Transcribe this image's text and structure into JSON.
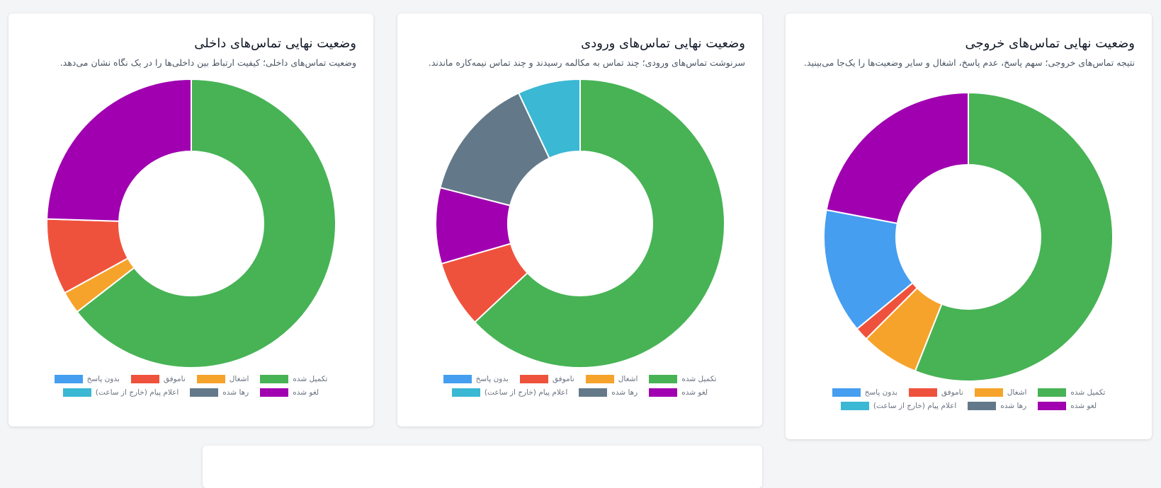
{
  "categories": [
    "تکمیل شده",
    "اشغال",
    "ناموفق",
    "بدون پاسخ",
    "لغو شده",
    "رها شده",
    "اعلام پیام (خارج از ساعت)"
  ],
  "colors": [
    "#47b355",
    "#f6a32b",
    "#ef523c",
    "#459ef0",
    "#a000b0",
    "#637989",
    "#3ab8d4"
  ],
  "cards": [
    {
      "id": "outgoing",
      "title": "وضعیت نهایی تماس‌های خروجی",
      "subtitle": "نتیجه تماس‌های خروجی؛ سهم پاسخ، عدم پاسخ، اشغال و سایر وضعیت‌ها را یک‌جا می‌بینید."
    },
    {
      "id": "incoming",
      "title": "وضعیت نهایی تماس‌های ورودی",
      "subtitle": "سرنوشت تماس‌های ورودی؛ چند تماس به مکالمه رسیدند و چند تماس نیمه‌کاره ماندند."
    },
    {
      "id": "internal",
      "title": "وضعیت نهایی تماس‌های داخلی",
      "subtitle": "وضعیت تماس‌های داخلی؛ کیفیت ارتباط بین داخلی‌ها را در یک نگاه نشان می‌دهد."
    }
  ],
  "chart_data": [
    {
      "type": "pie",
      "subtype": "doughnut",
      "title": "وضعیت نهایی تماس‌های خروجی",
      "categories": [
        "تکمیل شده",
        "اشغال",
        "ناموفق",
        "بدون پاسخ",
        "لغو شده",
        "رها شده",
        "اعلام پیام (خارج از ساعت)"
      ],
      "values": [
        56,
        6.5,
        1.5,
        14,
        22,
        0,
        0
      ],
      "legend": "bottom"
    },
    {
      "type": "pie",
      "subtype": "doughnut",
      "title": "وضعیت نهایی تماس‌های ورودی",
      "categories": [
        "تکمیل شده",
        "اشغال",
        "ناموفق",
        "بدون پاسخ",
        "لغو شده",
        "رها شده",
        "اعلام پیام (خارج از ساعت)"
      ],
      "values": [
        63,
        0,
        7.5,
        0,
        8.5,
        14,
        7
      ],
      "legend": "bottom"
    },
    {
      "type": "pie",
      "subtype": "doughnut",
      "title": "وضعیت نهایی تماس‌های داخلی",
      "categories": [
        "تکمیل شده",
        "اشغال",
        "ناموفق",
        "بدون پاسخ",
        "لغو شده",
        "رها شده",
        "اعلام پیام (خارج از ساعت)"
      ],
      "values": [
        64.5,
        2.5,
        8.5,
        0,
        24.5,
        0,
        0
      ],
      "legend": "bottom"
    }
  ]
}
